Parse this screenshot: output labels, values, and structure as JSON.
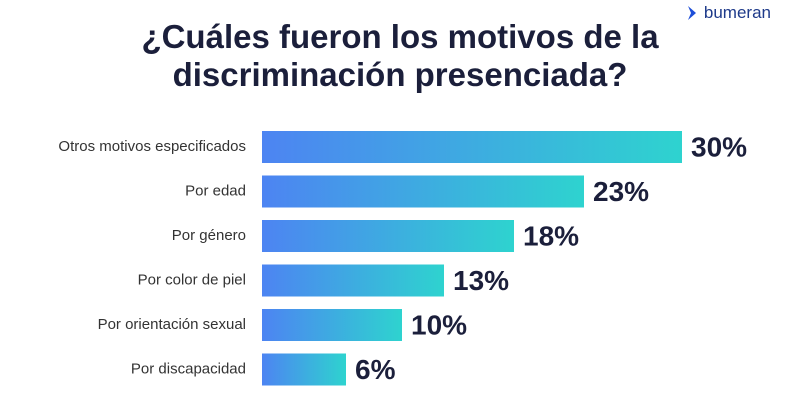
{
  "logo": "bumeran",
  "chart_data": {
    "type": "bar",
    "orientation": "horizontal",
    "title": "¿Cuáles fueron los motivos de la discriminación presenciada?",
    "categories": [
      "Otros motivos especificados",
      "Por edad",
      "Por género",
      "Por color de piel",
      "Por orientación sexual",
      "Por discapacidad"
    ],
    "values": [
      30,
      23,
      18,
      13,
      10,
      6
    ],
    "value_labels": [
      "30%",
      "23%",
      "18%",
      "13%",
      "10%",
      "6%"
    ],
    "colors": [
      "#4d84f2",
      "#2ed3cf"
    ]
  }
}
